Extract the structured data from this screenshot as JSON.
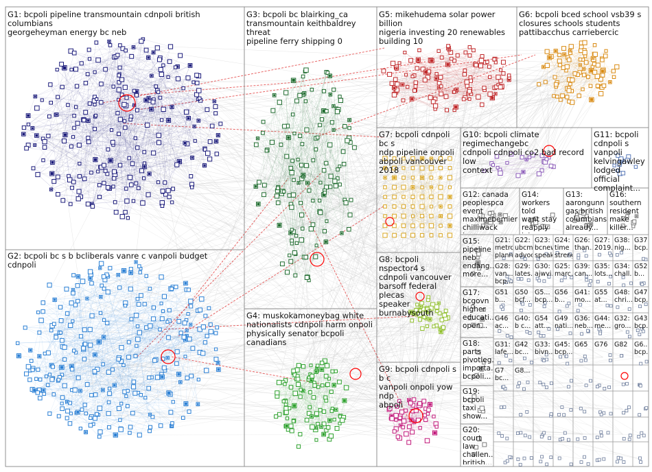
{
  "groups": [
    {
      "id": "G1",
      "label": "G1: bcpoli pipeline transmountain cdnpoli british columbians\ngeorgeheyman energy bc neb",
      "color": "#1a1a7a"
    },
    {
      "id": "G2",
      "label": "G2: bcpoli bc s b bcliberals vanre c vanpoli budget cdnpoli",
      "color": "#2a7fd4"
    },
    {
      "id": "G3",
      "label": "G3: bcpoli bc blairking_ca\ntransmountain keithbaldrey threat\npipeline ferry shipping 0",
      "color": "#1e6b2e"
    },
    {
      "id": "G4",
      "label": "G4: muskokamoneybag white\nnationalists cdnpoli harm onpoli\nphysically senator bcpoli canadians",
      "color": "#2ca02c"
    },
    {
      "id": "G5",
      "label": "G5: mikehudema solar power billion\nnigeria investing 20 renewables\nbuilding 10",
      "color": "#c0282a"
    },
    {
      "id": "G6",
      "label": "G6: bcpoli bced school vsb39 s\nclosures schools students\npattibacchus carriebercic",
      "color": "#d98a12"
    },
    {
      "id": "G7",
      "label": "G7: bcpoli cdnpoli bc s\nndp pipeline onpoli\nabpoli vancouver 2018",
      "color": "#d9a520"
    },
    {
      "id": "G8",
      "label": "G8: bcpoli nspector4 s\ncdnpoli vancouver\nbarsoff federal plecas\nspeaker burnabysouth",
      "color": "#8fbf2a"
    },
    {
      "id": "G9",
      "label": "G9: bcpoli cdnpoli s b c\nvanpoli onpoli yow ndp\nabpoli",
      "color": "#c2187a"
    },
    {
      "id": "G10",
      "label": "G10: bcpoli climate regimechangebc\ncdnpoli cdnpoli co2 bad record low\ncontext",
      "color": "#8a5ab8"
    },
    {
      "id": "G11",
      "label": "G11: bcpoli\ncdnpoli s\nvanpoli\nkelvingawley\nlodged official\ncomplaint...",
      "color": "#5a7ab8"
    },
    {
      "id": "G12",
      "label": "G12: canada\npeoplespca\nevent\nmaximebernier\nchilliwack hope...",
      "color": "#7a7a7a"
    },
    {
      "id": "G13",
      "label": "G13:\naarongunn\ngas british\ncolumbians\nalready...",
      "color": "#7a7a7a"
    },
    {
      "id": "G14",
      "label": "G14:\nworkers told\nwant stay\nreapply jobs\nstart over...",
      "color": "#7a7a7a"
    },
    {
      "id": "G15",
      "label": "G15:\npipeline\nneb\nendang...\nmore...",
      "color": "#7a7a7a"
    },
    {
      "id": "G16",
      "label": "G16:\nsouthern\nresident\nmake\nkiller...",
      "color": "#7a7a7a"
    },
    {
      "id": "G17",
      "label": "G17:\nbcgovn\nhigher\neducati...\nopen...",
      "color": "#7a7a7a"
    },
    {
      "id": "G18",
      "label": "G18:\nparts\npivotleg...\nimporta...\nbcpoli...",
      "color": "#7a7a7a"
    },
    {
      "id": "G19",
      "label": "G19:\nbcpoli\ntaxi\nshow...",
      "color": "#7a7a7a"
    },
    {
      "id": "G20",
      "label": "G20:\ncourt law\nchallen...\nbritish...",
      "color": "#7a7a7a"
    }
  ],
  "small_groups": [
    {
      "id": "G21",
      "label": "G21:\nmetrova...\nplanning..."
    },
    {
      "id": "G22",
      "label": "G22:\nubcm...\nadvoca..."
    },
    {
      "id": "G23",
      "label": "G23:\nbcnew...\nspeake..."
    },
    {
      "id": "G24",
      "label": "G24:\ntime\nstreng..."
    },
    {
      "id": "G28",
      "label": "G28:\nvan...\nbcp..."
    },
    {
      "id": "G29",
      "label": "G29:\nlates..."
    },
    {
      "id": "G30",
      "label": "G30:\najwvi..."
    },
    {
      "id": "G25",
      "label": "G25:\nmarc..."
    },
    {
      "id": "G26",
      "label": "G26:\nthan..."
    },
    {
      "id": "G27",
      "label": "G27:\n2019..."
    },
    {
      "id": "G38",
      "label": "G38:\nnig..."
    },
    {
      "id": "G37",
      "label": "G37:\nbcp..."
    },
    {
      "id": "G39",
      "label": "G39:\ncan..."
    },
    {
      "id": "G35",
      "label": "G35:\nlots..."
    },
    {
      "id": "G34",
      "label": "G34:\nchall..."
    },
    {
      "id": "G52",
      "label": "G52\nb..."
    },
    {
      "id": "G51",
      "label": "G51\nb..."
    },
    {
      "id": "G50",
      "label": "G50\nbcf..."
    },
    {
      "id": "G5x",
      "label": "G5...\nbcp..."
    },
    {
      "id": "G56",
      "label": "G56\nb..."
    },
    {
      "id": "G41",
      "label": "G41:\nmo..."
    },
    {
      "id": "G55",
      "label": "G55\nat..."
    },
    {
      "id": "G48",
      "label": "G48:\nchri..."
    },
    {
      "id": "G47",
      "label": "G47:\nbcp..."
    },
    {
      "id": "G46",
      "label": "G46\nac..."
    },
    {
      "id": "G40",
      "label": "G40:\nb c..."
    },
    {
      "id": "G54",
      "label": "G54\natt..."
    },
    {
      "id": "G49",
      "label": "G49\nnati..."
    },
    {
      "id": "G36",
      "label": "G36:\nneb..."
    },
    {
      "id": "G44",
      "label": "G44:\nme..."
    },
    {
      "id": "G32",
      "label": "G32:\ngro..."
    },
    {
      "id": "G43",
      "label": "G43:\nbcp..."
    },
    {
      "id": "G31",
      "label": "G31:\nlafe..."
    },
    {
      "id": "G42",
      "label": "G42\nbc..."
    },
    {
      "id": "G33",
      "label": "G33:\nbivn..."
    },
    {
      "id": "G45",
      "label": "G45:\nbcp..."
    },
    {
      "id": "G65",
      "label": "G65"
    },
    {
      "id": "G76",
      "label": "G76"
    },
    {
      "id": "G82",
      "label": "G82"
    },
    {
      "id": "G6x",
      "label": "G6...\nbcp..."
    },
    {
      "id": "G7x",
      "label": "G7\nbc..."
    },
    {
      "id": "G8x",
      "label": "G8..."
    }
  ],
  "edge_colors": {
    "default": "#c8c8c8",
    "cross": "#e03030",
    "highlight": "#ff0000"
  }
}
